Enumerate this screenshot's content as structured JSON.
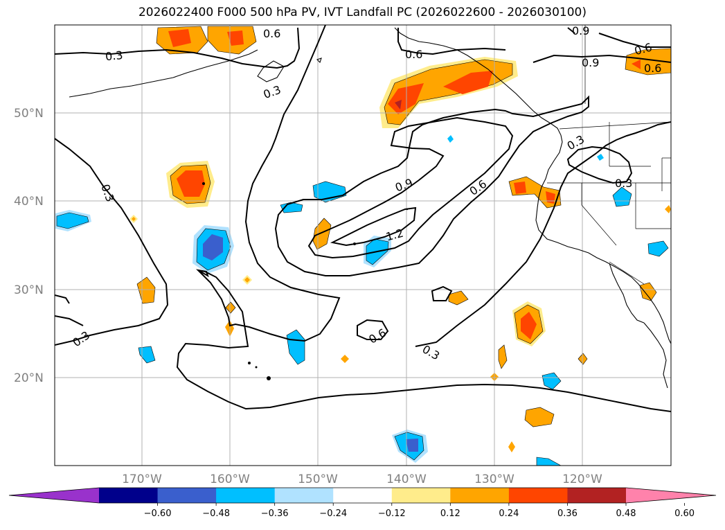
{
  "title": "2026022400 F000 500 hPa PV, IVT Landfall PC (2026022600 - 2026030100)",
  "map": {
    "lon_range": [
      -180,
      -110
    ],
    "lat_range": [
      10,
      60
    ],
    "lat_ticks": [
      "50°N",
      "40°N",
      "30°N",
      "20°N"
    ],
    "lon_ticks": [
      "170°W",
      "160°W",
      "150°W",
      "140°W",
      "130°W",
      "120°W"
    ],
    "contour_labels": [
      "0.3",
      "0.3",
      "0.6",
      "0.9",
      "0.6",
      "0.3",
      "0.3",
      "0.9",
      "0.6",
      "1.2",
      "0.3",
      "0.3",
      "0.6",
      "0.3",
      "0.9",
      "0.6",
      "0.6"
    ]
  },
  "colorbar": {
    "colors": [
      "#9932cc",
      "#00008b",
      "#3a5fcd",
      "#00bfff",
      "#b0e2ff",
      "#ffffff",
      "#ffec8b",
      "#ffa500",
      "#ff4500",
      "#b22222",
      "#ff82ab"
    ],
    "tick_labels": [
      "−0.60",
      "−0.48",
      "−0.36",
      "−0.24",
      "−0.12",
      "0.12",
      "0.24",
      "0.36",
      "0.48",
      "0.60"
    ]
  }
}
